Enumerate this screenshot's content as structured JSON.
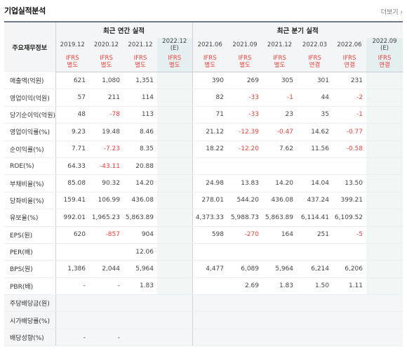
{
  "header": {
    "title": "기업실적분석",
    "more_label": "더보기 ›"
  },
  "table": {
    "corner_label": "주요재무정보",
    "annual_group_label": "최근 연간 실적",
    "quarter_group_label": "최근 분기 실적",
    "estimate_tag": "(E)",
    "annual_periods": [
      {
        "label": "2019.12",
        "accounting": [
          "IFRS",
          "별도"
        ]
      },
      {
        "label": "2020.12",
        "accounting": [
          "IFRS",
          "별도"
        ]
      },
      {
        "label": "2021.12",
        "accounting": [
          "IFRS",
          "별도"
        ]
      },
      {
        "label": "2022.12",
        "accounting": [
          "IFRS",
          "별도"
        ],
        "estimate": true
      }
    ],
    "quarter_periods": [
      {
        "label": "2021.06",
        "accounting": [
          "IFRS",
          "별도"
        ]
      },
      {
        "label": "2021.09",
        "accounting": [
          "IFRS",
          "별도"
        ]
      },
      {
        "label": "2021.12",
        "accounting": [
          "IFRS",
          "별도"
        ]
      },
      {
        "label": "2022.03",
        "accounting": [
          "IFRS",
          "연결"
        ]
      },
      {
        "label": "2022.06",
        "accounting": [
          "IFRS",
          "연결"
        ]
      },
      {
        "label": "2022.09",
        "accounting": [
          "IFRS",
          "연결"
        ],
        "estimate": true
      }
    ],
    "rows": [
      {
        "label": "매출액(억원)",
        "annual": [
          "621",
          "1,080",
          "1,351",
          ""
        ],
        "quarter": [
          "390",
          "269",
          "305",
          "301",
          "231",
          ""
        ]
      },
      {
        "label": "영업이익(억원)",
        "annual": [
          "57",
          "211",
          "114",
          ""
        ],
        "quarter": [
          "82",
          "-33",
          "-1",
          "44",
          "-2",
          ""
        ]
      },
      {
        "label": "당기순이익(억원)",
        "annual": [
          "48",
          "-78",
          "113",
          ""
        ],
        "quarter": [
          "71",
          "-33",
          "23",
          "35",
          "-1",
          ""
        ]
      },
      {
        "label": "영업이익률(%)",
        "group_start": true,
        "annual": [
          "9.23",
          "19.48",
          "8.46",
          ""
        ],
        "quarter": [
          "21.12",
          "-12.39",
          "-0.47",
          "14.62",
          "-0.77",
          ""
        ]
      },
      {
        "label": "순이익률(%)",
        "annual": [
          "7.71",
          "-7.23",
          "8.35",
          ""
        ],
        "quarter": [
          "18.22",
          "-12.20",
          "7.62",
          "11.56",
          "-0.58",
          ""
        ]
      },
      {
        "label": "ROE(%)",
        "annual": [
          "64.33",
          "-43.11",
          "20.88",
          ""
        ],
        "quarter": [
          "",
          "",
          "",
          "",
          "",
          ""
        ]
      },
      {
        "label": "부채비율(%)",
        "group_start": true,
        "annual": [
          "85.08",
          "90.32",
          "14.20",
          ""
        ],
        "quarter": [
          "24.98",
          "13.83",
          "14.20",
          "14.04",
          "13.50",
          ""
        ]
      },
      {
        "label": "당좌비율(%)",
        "annual": [
          "159.41",
          "106.99",
          "436.08",
          ""
        ],
        "quarter": [
          "278.01",
          "544.20",
          "436.08",
          "437.24",
          "399.21",
          ""
        ]
      },
      {
        "label": "유보율(%)",
        "annual": [
          "992.01",
          "1,965.23",
          "5,863.89",
          ""
        ],
        "quarter": [
          "4,373.33",
          "5,988.73",
          "5,863.89",
          "6,114.41",
          "6,109.52",
          ""
        ]
      },
      {
        "label": "EPS(원)",
        "group_start": true,
        "annual": [
          "620",
          "-857",
          "904",
          ""
        ],
        "quarter": [
          "598",
          "-270",
          "164",
          "251",
          "-5",
          ""
        ]
      },
      {
        "label": "PER(배)",
        "annual": [
          "",
          "",
          "12.06",
          ""
        ],
        "quarter": [
          "",
          "",
          "",
          "",
          "",
          ""
        ]
      },
      {
        "label": "BPS(원)",
        "annual": [
          "1,386",
          "2,044",
          "5,964",
          ""
        ],
        "quarter": [
          "4,477",
          "6,089",
          "5,964",
          "6,214",
          "6,206",
          ""
        ]
      },
      {
        "label": "PBR(배)",
        "annual": [
          "-",
          "-",
          "1.83",
          ""
        ],
        "quarter": [
          "",
          "2.69",
          "1.83",
          "1.50",
          "1.11",
          ""
        ]
      },
      {
        "label": "주당배당금(원)",
        "group_start": true,
        "shaded": true,
        "annual": [
          "",
          "",
          "",
          ""
        ],
        "quarter": [
          "",
          "",
          "",
          "",
          "",
          ""
        ]
      },
      {
        "label": "시가배당률(%)",
        "shaded": true,
        "annual": [
          "",
          "",
          "",
          ""
        ],
        "quarter": [
          "",
          "",
          "",
          "",
          "",
          ""
        ]
      },
      {
        "label": "배당성향(%)",
        "shaded": true,
        "annual": [
          "-",
          "-",
          "",
          ""
        ],
        "quarter": [
          "",
          "",
          "",
          "",
          "",
          ""
        ]
      }
    ]
  },
  "colors": {
    "negative": "#e8433a",
    "header_bg": "#f4f5f6",
    "estimate_bg": "#f1f7f4",
    "top_border": "#6f7b8a"
  }
}
